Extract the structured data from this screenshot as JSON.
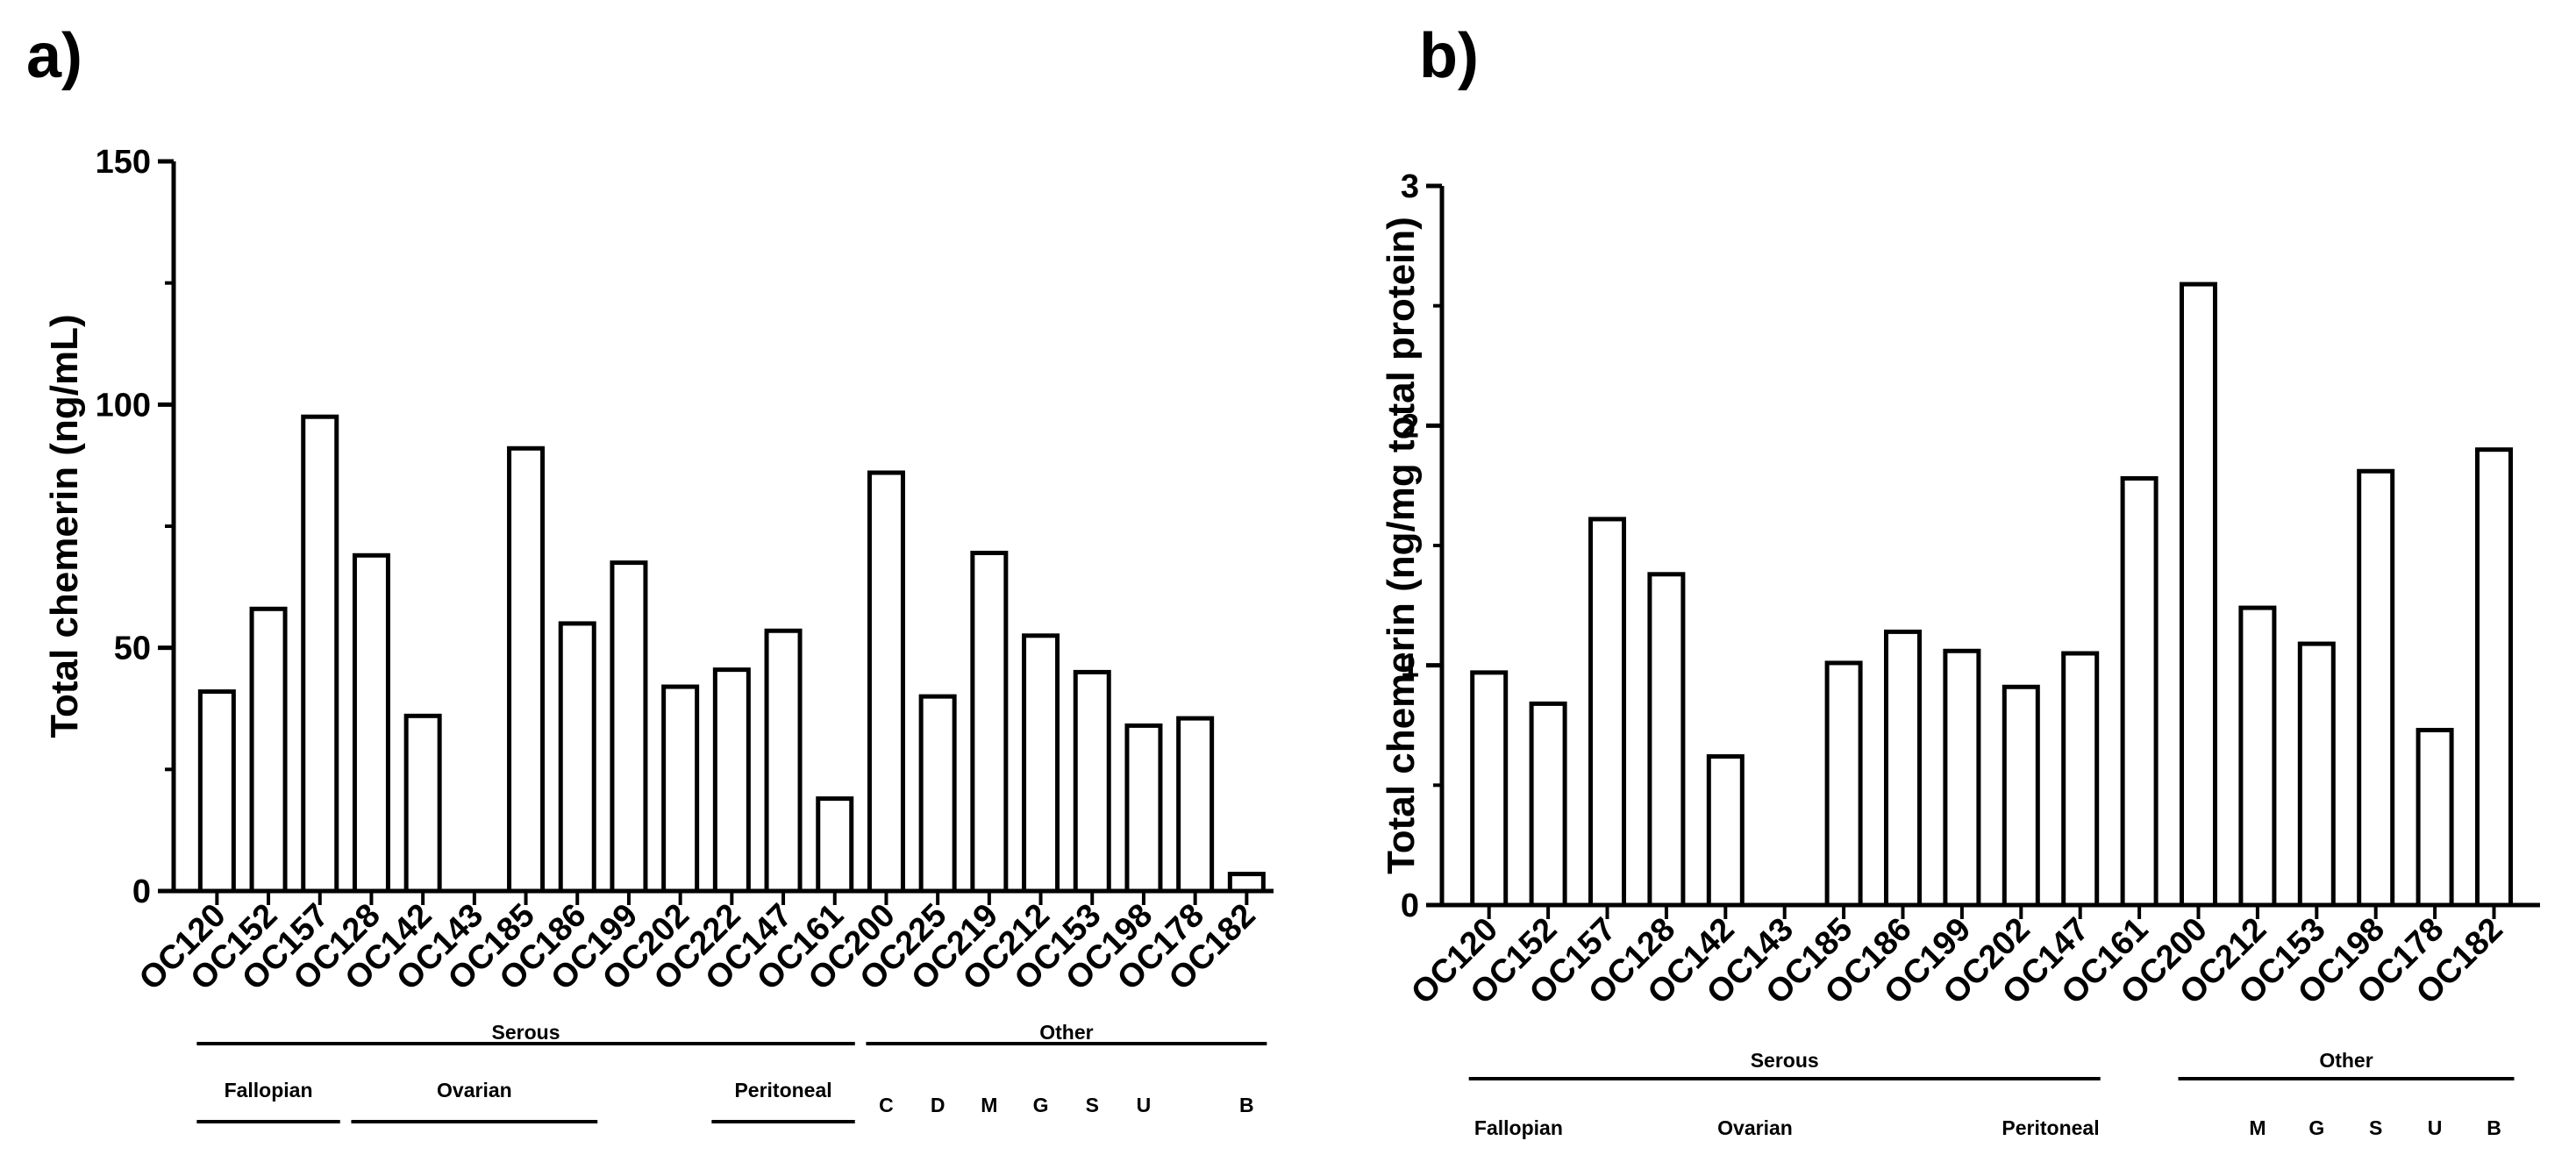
{
  "chart_data": [
    {
      "panel_label": "a)",
      "type": "bar",
      "ylabel": "Total chemerin (ng/mL)",
      "ylim": [
        0,
        150
      ],
      "yticks": [
        "0",
        "50",
        "100",
        "150"
      ],
      "ytick_values": [
        0,
        50,
        100,
        150
      ],
      "categories": [
        "OC120",
        "OC152",
        "OC157",
        "OC128",
        "OC142",
        "OC143",
        "OC185",
        "OC186",
        "OC199",
        "OC202",
        "OC222",
        "OC147",
        "OC161",
        "OC200",
        "OC225",
        "OC219",
        "OC212",
        "OC153",
        "OC198",
        "OC178",
        "OC182"
      ],
      "values": [
        41,
        58,
        97.5,
        69,
        36,
        0,
        91,
        55,
        67.5,
        42,
        45.5,
        53.5,
        19,
        86,
        40,
        69.5,
        52.5,
        45,
        34,
        35.5,
        3.5
      ],
      "groups": [
        {
          "label": "Serous",
          "start": 0,
          "end": 12
        },
        {
          "label": "Other",
          "start": 13,
          "end": 20
        }
      ],
      "subgroups": [
        {
          "label": "Fallopian",
          "start": 0,
          "end": 2,
          "line": true
        },
        {
          "label": "Ovarian",
          "start": 3,
          "end": 7,
          "line": true
        },
        {
          "label": "Peritoneal",
          "start": 10,
          "end": 12,
          "line": true
        },
        {
          "label": "C",
          "start": 13,
          "end": 13,
          "line": false
        },
        {
          "label": "D",
          "start": 14,
          "end": 14,
          "line": false
        },
        {
          "label": "M",
          "start": 15,
          "end": 15,
          "line": false
        },
        {
          "label": "G",
          "start": 16,
          "end": 16,
          "line": false
        },
        {
          "label": "S",
          "start": 17,
          "end": 17,
          "line": false
        },
        {
          "label": "U",
          "start": 18,
          "end": 18,
          "line": false
        },
        {
          "label": "B",
          "start": 20,
          "end": 20,
          "line": false
        }
      ]
    },
    {
      "panel_label": "b)",
      "type": "bar",
      "ylabel": "Total chemerin (ng/mg total protein)",
      "ylim": [
        0,
        3
      ],
      "yticks": [
        "0",
        "1",
        "2",
        "3"
      ],
      "ytick_values": [
        0,
        1,
        2,
        3
      ],
      "categories": [
        "OC120",
        "OC152",
        "OC157",
        "OC128",
        "OC142",
        "OC143",
        "OC185",
        "OC186",
        "OC199",
        "OC202",
        "OC147",
        "OC161",
        "OC200",
        "OC212",
        "OC153",
        "OC198",
        "OC178",
        "OC182"
      ],
      "values": [
        0.97,
        0.84,
        1.61,
        1.38,
        0.62,
        0,
        1.01,
        1.14,
        1.06,
        0.91,
        1.05,
        1.78,
        2.59,
        1.24,
        1.09,
        1.81,
        0.73,
        1.9
      ],
      "groups": [
        {
          "label": "Serous",
          "start": 0,
          "end": 10
        },
        {
          "label": "Other",
          "start": 12,
          "end": 17
        }
      ],
      "subgroups": [
        {
          "label": "Fallopian",
          "start": 0,
          "end": 1,
          "line": false
        },
        {
          "label": "Ovarian",
          "start": 4,
          "end": 5,
          "line": false
        },
        {
          "label": "Peritoneal",
          "start": 9,
          "end": 10,
          "line": false
        },
        {
          "label": "M",
          "start": 13,
          "end": 13,
          "line": false
        },
        {
          "label": "G",
          "start": 14,
          "end": 14,
          "line": false
        },
        {
          "label": "S",
          "start": 15,
          "end": 15,
          "line": false
        },
        {
          "label": "U",
          "start": 16,
          "end": 16,
          "line": false
        },
        {
          "label": "B",
          "start": 17,
          "end": 17,
          "line": false
        }
      ]
    }
  ]
}
